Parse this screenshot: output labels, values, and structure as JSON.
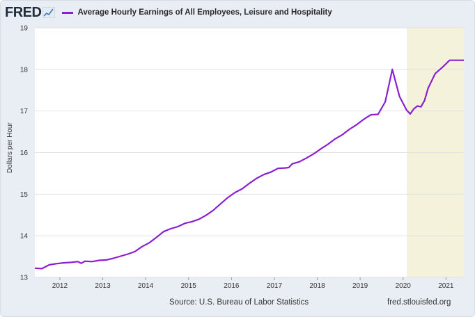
{
  "header": {
    "logo_text": "FRED",
    "logo_icon": "trend-line-icon",
    "series_title": "Average Hourly Earnings of All Employees, Leisure and Hospitality"
  },
  "footer": {
    "source": "Source: U.S. Bureau of Labor Statistics",
    "url": "fred.stlouisfed.org"
  },
  "colors": {
    "series": "#8a1fd2",
    "recession": "#f5f2dc",
    "plot_bg": "#ffffff",
    "frame_bg": "#e8eef4"
  },
  "chart_data": {
    "type": "line",
    "title": "Average Hourly Earnings of All Employees, Leisure and Hospitality",
    "ylabel": "Dollars per Hour",
    "xlabel": "",
    "ylim": [
      13,
      19
    ],
    "xlim": [
      "2011-06",
      "2021-06"
    ],
    "yticks": [
      "13",
      "14",
      "15",
      "16",
      "17",
      "18",
      "19"
    ],
    "xticks": [
      "2012",
      "2013",
      "2014",
      "2015",
      "2016",
      "2017",
      "2018",
      "2019",
      "2020",
      "2021"
    ],
    "grid": true,
    "recession_shading": {
      "start": "2020-02",
      "end": "2021-06"
    },
    "series": [
      {
        "name": "Average Hourly Earnings of All Employees, Leisure and Hospitality",
        "x": [
          "2011-06",
          "2011-08",
          "2011-10",
          "2011-12",
          "2012-02",
          "2012-04",
          "2012-06",
          "2012-07",
          "2012-08",
          "2012-10",
          "2012-12",
          "2013-02",
          "2013-04",
          "2013-06",
          "2013-08",
          "2013-10",
          "2013-12",
          "2014-02",
          "2014-04",
          "2014-06",
          "2014-08",
          "2014-10",
          "2014-12",
          "2015-02",
          "2015-04",
          "2015-06",
          "2015-08",
          "2015-10",
          "2015-12",
          "2016-02",
          "2016-04",
          "2016-06",
          "2016-08",
          "2016-10",
          "2016-12",
          "2017-02",
          "2017-04",
          "2017-05",
          "2017-06",
          "2017-08",
          "2017-10",
          "2017-12",
          "2018-02",
          "2018-04",
          "2018-06",
          "2018-08",
          "2018-10",
          "2018-12",
          "2019-02",
          "2019-04",
          "2019-06",
          "2019-08",
          "2019-10",
          "2019-12",
          "2020-02",
          "2020-03",
          "2020-04",
          "2020-05",
          "2020-06",
          "2020-07",
          "2020-08",
          "2020-10",
          "2020-12",
          "2021-02",
          "2021-04",
          "2021-05",
          "2021-06"
        ],
        "y": [
          13.22,
          13.21,
          13.3,
          13.33,
          13.35,
          13.36,
          13.38,
          13.34,
          13.39,
          13.38,
          13.41,
          13.42,
          13.46,
          13.51,
          13.56,
          13.62,
          13.74,
          13.83,
          13.96,
          14.1,
          14.17,
          14.22,
          14.3,
          14.34,
          14.4,
          14.5,
          14.62,
          14.77,
          14.92,
          15.04,
          15.13,
          15.26,
          15.38,
          15.47,
          15.53,
          15.62,
          15.63,
          15.64,
          15.73,
          15.78,
          15.87,
          15.97,
          16.09,
          16.2,
          16.33,
          16.43,
          16.56,
          16.67,
          16.8,
          16.91,
          16.92,
          17.22,
          18.0,
          17.35,
          17.02,
          16.93,
          17.05,
          17.12,
          17.1,
          17.25,
          17.55,
          17.9,
          18.05,
          18.22,
          18.22,
          18.22,
          18.22
        ]
      }
    ]
  }
}
